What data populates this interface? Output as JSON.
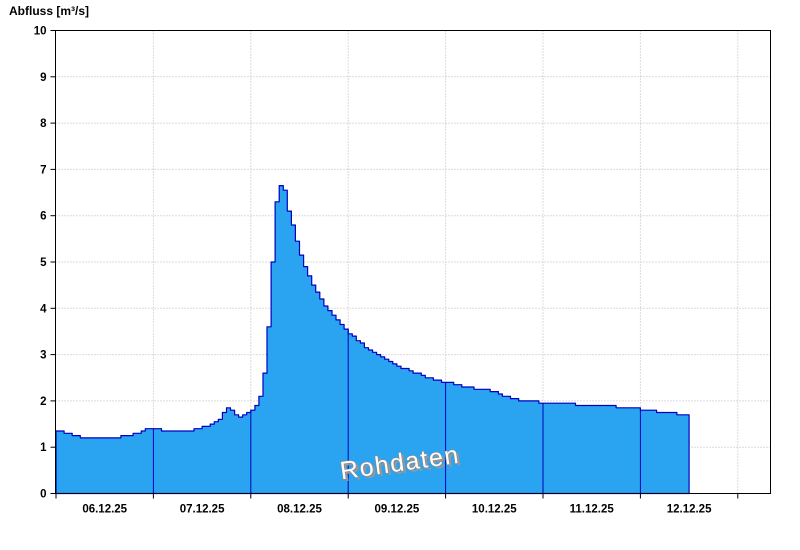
{
  "chart_data": {
    "type": "area",
    "title": "Abfluss [m³/s]",
    "ylabel": "Abfluss [m³/s]",
    "xlabel": "",
    "ylim": [
      0,
      10
    ],
    "y_ticks": [
      0,
      1,
      2,
      3,
      4,
      5,
      6,
      7,
      8,
      9,
      10
    ],
    "x_tick_labels": [
      "06.12.25",
      "07.12.25",
      "08.12.25",
      "09.12.25",
      "10.12.25",
      "11.12.25",
      "12.12.25"
    ],
    "x_start": "06.12.25 00:00",
    "hours_per_step": 1,
    "step_mode": "step-after",
    "grid": true,
    "legend_position": "none",
    "annotation": "Rohdaten",
    "colors": {
      "fill": "#2AA4F0",
      "stroke": "#0000C0",
      "grid": "#b8b8b8",
      "axis": "#000000",
      "watermark_fill": "#ffffff",
      "watermark_outline": "#8a8a8a",
      "watermark_shadow": "#979797"
    },
    "values": [
      1.35,
      1.35,
      1.3,
      1.3,
      1.25,
      1.25,
      1.2,
      1.2,
      1.2,
      1.2,
      1.2,
      1.2,
      1.2,
      1.2,
      1.2,
      1.2,
      1.25,
      1.25,
      1.25,
      1.3,
      1.3,
      1.35,
      1.4,
      1.4,
      1.4,
      1.4,
      1.35,
      1.35,
      1.35,
      1.35,
      1.35,
      1.35,
      1.35,
      1.35,
      1.4,
      1.4,
      1.45,
      1.45,
      1.5,
      1.55,
      1.6,
      1.75,
      1.85,
      1.8,
      1.7,
      1.65,
      1.7,
      1.75,
      1.8,
      1.9,
      2.1,
      2.6,
      3.6,
      5.0,
      6.3,
      6.65,
      6.55,
      6.1,
      5.8,
      5.45,
      5.15,
      4.9,
      4.7,
      4.5,
      4.35,
      4.2,
      4.05,
      3.95,
      3.85,
      3.75,
      3.65,
      3.55,
      3.45,
      3.4,
      3.3,
      3.25,
      3.15,
      3.1,
      3.05,
      3.0,
      2.95,
      2.9,
      2.85,
      2.8,
      2.75,
      2.7,
      2.7,
      2.65,
      2.6,
      2.6,
      2.55,
      2.5,
      2.5,
      2.45,
      2.45,
      2.4,
      2.4,
      2.4,
      2.35,
      2.35,
      2.3,
      2.3,
      2.3,
      2.25,
      2.25,
      2.25,
      2.25,
      2.2,
      2.2,
      2.15,
      2.1,
      2.1,
      2.05,
      2.05,
      2.0,
      2.0,
      2.0,
      2.0,
      2.0,
      1.95,
      1.95,
      1.95,
      1.95,
      1.95,
      1.95,
      1.95,
      1.95,
      1.95,
      1.9,
      1.9,
      1.9,
      1.9,
      1.9,
      1.9,
      1.9,
      1.9,
      1.9,
      1.9,
      1.85,
      1.85,
      1.85,
      1.85,
      1.85,
      1.85,
      1.8,
      1.8,
      1.8,
      1.8,
      1.75,
      1.75,
      1.75,
      1.75,
      1.75,
      1.7,
      1.7,
      1.7
    ]
  }
}
